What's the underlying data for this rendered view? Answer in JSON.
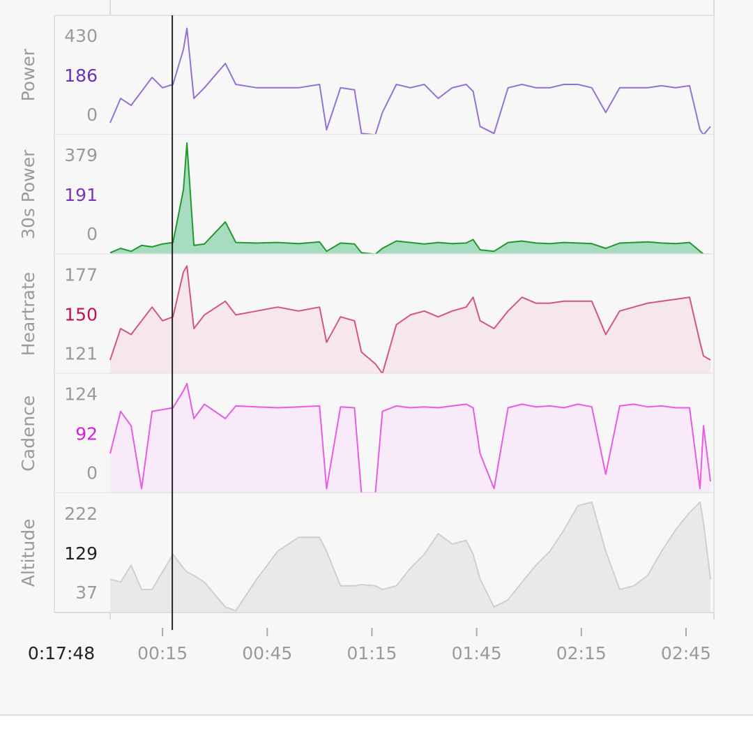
{
  "chart_data": [
    {
      "type": "area",
      "title": "Power",
      "max": 430,
      "avg": 186,
      "min": 0,
      "color": "#9371d6",
      "area_color": "none",
      "avg_color": "#6a2fbf",
      "xlim": [
        0,
        173
      ],
      "ylim": [
        0,
        460
      ],
      "x": [
        0,
        3,
        6,
        9,
        12,
        15,
        18,
        21,
        22,
        24,
        27,
        33,
        36,
        42,
        48,
        54,
        60,
        62,
        66,
        70,
        72,
        76,
        78,
        82,
        86,
        90,
        94,
        98,
        102,
        104,
        106,
        110,
        114,
        118,
        122,
        126,
        130,
        134,
        138,
        142,
        146,
        150,
        154,
        158,
        162,
        166,
        169,
        170,
        172
      ],
      "values": [
        46,
        140,
        113,
        167,
        221,
        181,
        194,
        329,
        410,
        140,
        181,
        275,
        194,
        181,
        181,
        181,
        194,
        19,
        181,
        173,
        5,
        0,
        86,
        194,
        181,
        194,
        140,
        181,
        194,
        167,
        32,
        5,
        181,
        194,
        181,
        181,
        194,
        194,
        181,
        86,
        181,
        181,
        181,
        189,
        181,
        189,
        19,
        0,
        32
      ]
    },
    {
      "type": "area",
      "title": "30s Power",
      "max": 379,
      "avg": 191,
      "min": 0,
      "color": "#1f9a2a",
      "area_color": "#a8dcc0",
      "avg_color": "#7a35b8",
      "xlim": [
        0,
        173
      ],
      "ylim": [
        0,
        407
      ],
      "x": [
        0,
        3,
        6,
        9,
        12,
        15,
        18,
        21,
        22,
        24,
        27,
        33,
        36,
        42,
        48,
        54,
        60,
        62,
        66,
        70,
        72,
        76,
        78,
        82,
        86,
        90,
        94,
        98,
        102,
        104,
        106,
        110,
        114,
        118,
        122,
        126,
        130,
        134,
        138,
        142,
        146,
        150,
        154,
        158,
        162,
        166,
        169,
        170,
        172
      ],
      "values": [
        5,
        20,
        10,
        30,
        25,
        35,
        40,
        220,
        379,
        30,
        35,
        110,
        40,
        38,
        40,
        36,
        42,
        10,
        38,
        35,
        5,
        0,
        20,
        45,
        40,
        35,
        40,
        36,
        38,
        50,
        15,
        10,
        40,
        45,
        38,
        36,
        40,
        38,
        36,
        20,
        38,
        40,
        42,
        38,
        36,
        40,
        10,
        0,
        0
      ]
    },
    {
      "type": "area",
      "title": "Heartrate",
      "max": 177,
      "avg": 150,
      "min": 121,
      "color": "#d4557a",
      "area_color": "#f5e7eb",
      "avg_color": "#c0144a",
      "xlim": [
        0,
        173
      ],
      "ylim": [
        121,
        182
      ],
      "x": [
        0,
        3,
        6,
        9,
        12,
        15,
        18,
        21,
        22,
        24,
        27,
        33,
        36,
        42,
        48,
        54,
        60,
        62,
        66,
        70,
        72,
        76,
        78,
        82,
        86,
        90,
        94,
        98,
        102,
        104,
        106,
        110,
        114,
        118,
        122,
        126,
        130,
        134,
        138,
        142,
        146,
        150,
        154,
        158,
        162,
        166,
        169,
        170,
        172
      ],
      "values": [
        128,
        144,
        141,
        148,
        155,
        148,
        150,
        173,
        176,
        144,
        151,
        158,
        151,
        153,
        155,
        153,
        155,
        137,
        150,
        148,
        132,
        126,
        121,
        146,
        151,
        153,
        150,
        153,
        155,
        160,
        148,
        144,
        153,
        160,
        157,
        157,
        158,
        158,
        158,
        141,
        153,
        155,
        157,
        158,
        159,
        160,
        137,
        130,
        128
      ]
    },
    {
      "type": "area",
      "title": "Cadence",
      "max": 124,
      "avg": 92,
      "min": 0,
      "color": "#e85ae6",
      "area_color": "#f8eaf8",
      "avg_color": "#d81ed8",
      "xlim": [
        0,
        173
      ],
      "ylim": [
        0,
        133
      ],
      "x": [
        0,
        3,
        6,
        9,
        12,
        15,
        18,
        21,
        22,
        24,
        27,
        33,
        36,
        42,
        48,
        54,
        60,
        62,
        66,
        70,
        72,
        76,
        78,
        82,
        86,
        90,
        94,
        98,
        102,
        104,
        106,
        110,
        114,
        118,
        122,
        126,
        130,
        134,
        138,
        142,
        146,
        150,
        154,
        158,
        162,
        166,
        169,
        170,
        172
      ],
      "values": [
        44,
        91,
        75,
        5,
        91,
        93,
        95,
        114,
        122,
        83,
        99,
        83,
        97,
        96,
        95,
        96,
        97,
        5,
        96,
        95,
        0,
        0,
        91,
        97,
        95,
        96,
        95,
        97,
        99,
        95,
        44,
        5,
        95,
        99,
        96,
        97,
        95,
        99,
        96,
        21,
        97,
        99,
        96,
        97,
        95,
        95,
        5,
        75,
        13
      ]
    },
    {
      "type": "area",
      "title": "Altitude",
      "max": 222,
      "avg": 129,
      "min": 37,
      "color": "#cfcfcf",
      "area_color": "#e9e9e9",
      "avg_color": "#222222",
      "xlim": [
        0,
        173
      ],
      "ylim": [
        37,
        234
      ],
      "x": [
        0,
        3,
        6,
        9,
        12,
        15,
        18,
        21,
        22,
        24,
        27,
        33,
        36,
        42,
        48,
        54,
        60,
        62,
        66,
        70,
        72,
        76,
        78,
        82,
        86,
        90,
        94,
        98,
        102,
        104,
        106,
        110,
        114,
        118,
        122,
        126,
        130,
        134,
        138,
        142,
        146,
        150,
        154,
        158,
        162,
        166,
        169,
        170,
        172
      ],
      "values": [
        92,
        87,
        115,
        75,
        75,
        104,
        133,
        110,
        104,
        98,
        87,
        46,
        40,
        92,
        138,
        161,
        161,
        138,
        81,
        81,
        83,
        81,
        75,
        81,
        110,
        133,
        167,
        150,
        156,
        133,
        92,
        46,
        58,
        87,
        115,
        138,
        173,
        213,
        219,
        138,
        75,
        81,
        98,
        138,
        173,
        202,
        219,
        185,
        92
      ],
      "xticks": [
        {
          "value": 15,
          "label": "00:15"
        },
        {
          "value": 45,
          "label": "00:45"
        },
        {
          "value": 75,
          "label": "01:15"
        },
        {
          "value": 105,
          "label": "01:45"
        },
        {
          "value": 135,
          "label": "02:15"
        },
        {
          "value": 165,
          "label": "02:45"
        }
      ],
      "cursor": {
        "value": 17.8,
        "label": "0:17:48"
      }
    }
  ]
}
